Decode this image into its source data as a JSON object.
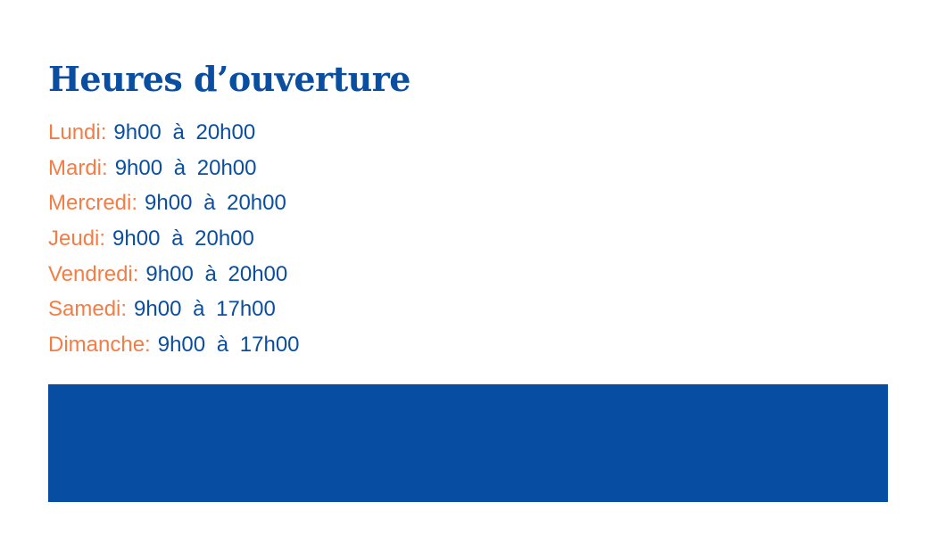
{
  "title": "Heures d’ouverture",
  "hours": [
    {
      "day": "Lundi:",
      "time": "9h00 à 20h00"
    },
    {
      "day": "Mardi:",
      "time": "9h00 à 20h00"
    },
    {
      "day": "Mercredi:",
      "time": "9h00 à 20h00"
    },
    {
      "day": "Jeudi:",
      "time": "9h00 à 20h00"
    },
    {
      "day": "Vendredi:",
      "time": "9h00 à 20h00"
    },
    {
      "day": "Samedi:",
      "time": "9h00 à 17h00"
    },
    {
      "day": "Dimanche:",
      "time": "9h00 à 17h00"
    }
  ],
  "colors": {
    "primary": "#0a4ea2",
    "accent": "#f47c45"
  }
}
